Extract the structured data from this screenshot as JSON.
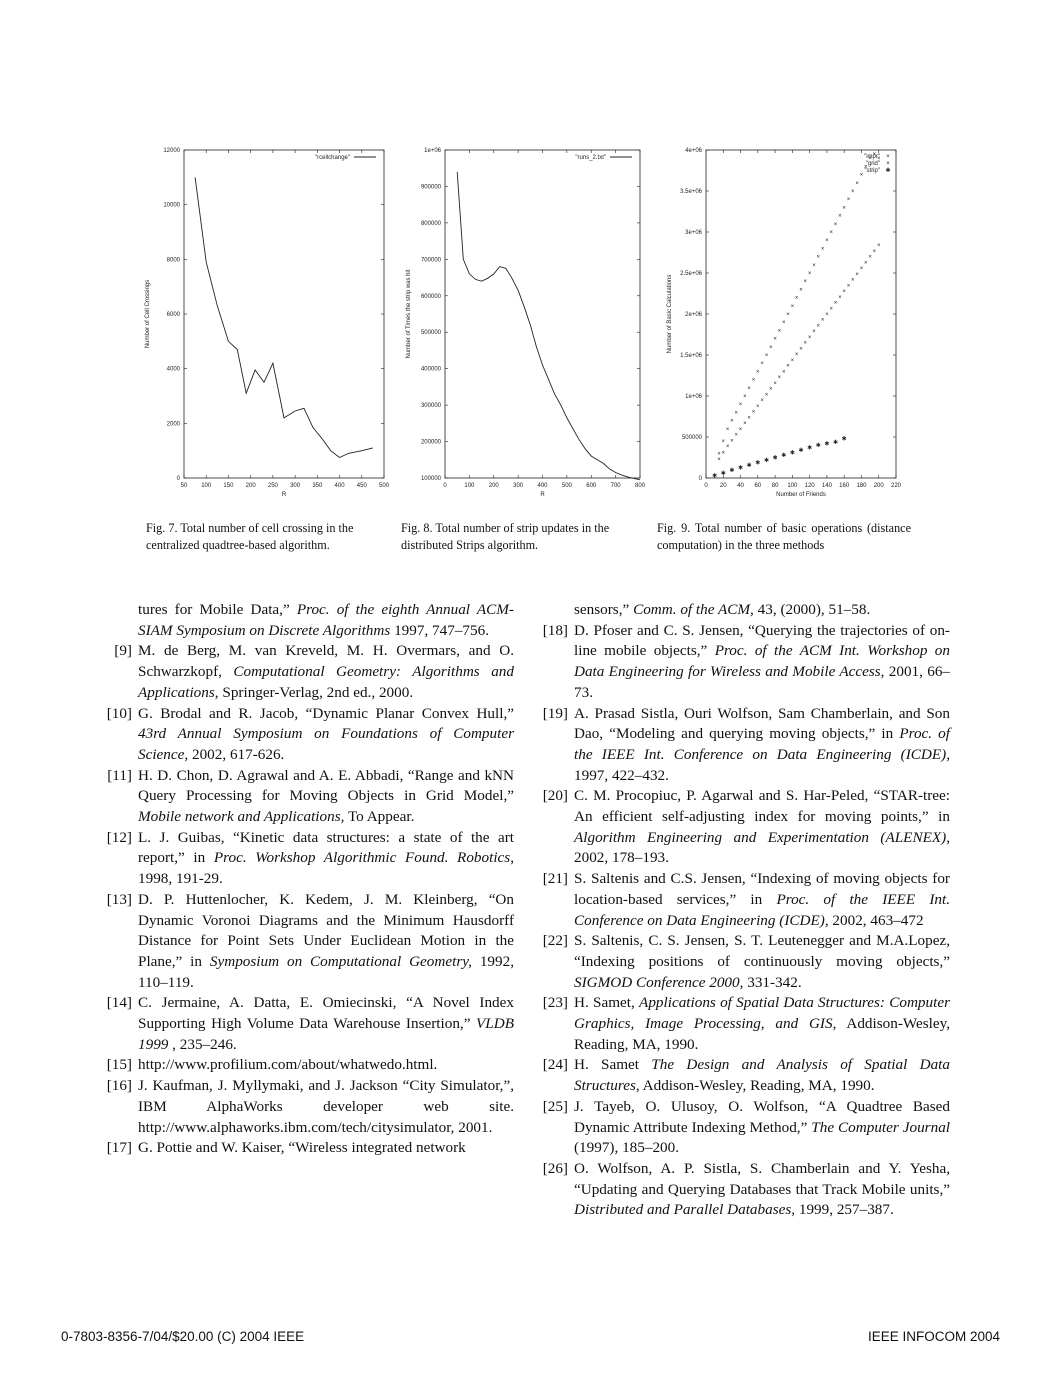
{
  "figures": [
    {
      "caption": "Fig. 7.   Total number of cell crossing in the centralized quadtree-based algorithm.",
      "chart_data": {
        "type": "line",
        "xlabel": "R",
        "ylabel": "Number of Cell Crossings",
        "xlim": [
          50,
          500
        ],
        "ylim": [
          0,
          12000
        ],
        "xticks": [
          "50",
          "100",
          "150",
          "200",
          "250",
          "300",
          "350",
          "400",
          "450",
          "500"
        ],
        "yticks": [
          "0",
          "2000",
          "4000",
          "6000",
          "8000",
          "10000",
          "12000"
        ],
        "legend_position": "top-right",
        "series": [
          {
            "name": "\"rcellchange\"",
            "x": [
              75,
              100,
              125,
              150,
              170,
              190,
              210,
              230,
              250,
              275,
              300,
              320,
              340,
              360,
              380,
              400,
              420,
              450,
              475
            ],
            "y": [
              11000,
              7900,
              6300,
              5000,
              4700,
              3100,
              3950,
              3500,
              4200,
              2200,
              2450,
              2550,
              1850,
              1450,
              1000,
              750,
              900,
              1000,
              1100
            ]
          }
        ]
      }
    },
    {
      "caption": "Fig. 8.   Total number of strip updates in the distributed Strips algorithm.",
      "chart_data": {
        "type": "line",
        "xlabel": "R",
        "ylabel": "Number of Times the strip was hit",
        "xlim": [
          0,
          800
        ],
        "ylim": [
          100000,
          1000000
        ],
        "xticks": [
          "0",
          "100",
          "200",
          "300",
          "400",
          "500",
          "600",
          "700",
          "800"
        ],
        "yticks": [
          "100000",
          "200000",
          "300000",
          "400000",
          "500000",
          "600000",
          "700000",
          "800000",
          "900000",
          "1e+06"
        ],
        "legend_position": "top-right",
        "series": [
          {
            "name": "\"runs_2.txt\"",
            "x": [
              50,
              75,
              100,
              125,
              150,
              175,
              200,
              225,
              250,
              275,
              300,
              325,
              350,
              375,
              400,
              425,
              450,
              475,
              500,
              525,
              550,
              575,
              600,
              625,
              650,
              675,
              700,
              725,
              750,
              775,
              800
            ],
            "y": [
              940000,
              700000,
              660000,
              645000,
              640000,
              648000,
              660000,
              680000,
              675000,
              648000,
              615000,
              570000,
              520000,
              460000,
              410000,
              370000,
              330000,
              300000,
              265000,
              235000,
              205000,
              180000,
              160000,
              150000,
              140000,
              125000,
              115000,
              108000,
              103000,
              99000,
              95000
            ]
          }
        ]
      }
    },
    {
      "caption": "Fig. 9.    Total number of basic operations (distance computation) in the three methods",
      "chart_data": {
        "type": "scatter",
        "xlabel": "Number of Friends",
        "ylabel": "Number of Basic Calculations",
        "xlim": [
          0,
          220
        ],
        "ylim": [
          0,
          4000000
        ],
        "xticks": [
          "0",
          "20",
          "40",
          "60",
          "80",
          "100",
          "120",
          "140",
          "160",
          "180",
          "200",
          "220"
        ],
        "yticks": [
          "0",
          "500000",
          "1e+06",
          "1.5e+06",
          "2e+06",
          "2.5e+06",
          "3e+06",
          "3.5e+06",
          "4e+06"
        ],
        "legend_position": "top-right",
        "series": [
          {
            "name": "\"impr\"",
            "marker": "+",
            "x": [
              15,
              20,
              25,
              30,
              35,
              40,
              45,
              50,
              55,
              60,
              65,
              70,
              75,
              80,
              85,
              90,
              95,
              100,
              105,
              110,
              115,
              120,
              125,
              130,
              135,
              140,
              145,
              150,
              155,
              160,
              165,
              170,
              175,
              180,
              185,
              190,
              195,
              200
            ],
            "y": [
              300000,
              450000,
              600000,
              700000,
              800000,
              900000,
              1000000,
              1100000,
              1200000,
              1300000,
              1400000,
              1500000,
              1600000,
              1700000,
              1800000,
              1900000,
              2000000,
              2100000,
              2200000,
              2300000,
              2400000,
              2500000,
              2600000,
              2700000,
              2800000,
              2900000,
              3000000,
              3100000,
              3200000,
              3300000,
              3400000,
              3500000,
              3600000,
              3700000,
              3800000,
              3900000,
              3950000,
              3900000
            ]
          },
          {
            "name": "\"grid\"",
            "marker": "x",
            "x": [
              15,
              20,
              25,
              30,
              35,
              40,
              45,
              50,
              55,
              60,
              65,
              70,
              75,
              80,
              85,
              90,
              95,
              100,
              105,
              110,
              115,
              120,
              125,
              130,
              135,
              140,
              145,
              150,
              155,
              160,
              165,
              170,
              175,
              180,
              185,
              190,
              195,
              200
            ],
            "y": [
              230000,
              310000,
              390000,
              460000,
              530000,
              600000,
              670000,
              740000,
              810000,
              880000,
              950000,
              1020000,
              1090000,
              1160000,
              1230000,
              1300000,
              1370000,
              1440000,
              1510000,
              1580000,
              1650000,
              1720000,
              1790000,
              1860000,
              1930000,
              2000000,
              2070000,
              2140000,
              2210000,
              2280000,
              2350000,
              2420000,
              2490000,
              2560000,
              2630000,
              2700000,
              2770000,
              2840000
            ]
          },
          {
            "name": "\"strip\"",
            "marker": "*",
            "x": [
              10,
              20,
              30,
              40,
              50,
              60,
              70,
              80,
              90,
              100,
              110,
              120,
              130,
              140,
              150,
              160
            ],
            "y": [
              30000,
              60000,
              100000,
              130000,
              160000,
              190000,
              220000,
              250000,
              280000,
              310000,
              340000,
              370000,
              400000,
              420000,
              440000,
              480000
            ]
          }
        ]
      }
    }
  ],
  "references_left": [
    {
      "num": "",
      "html": "tures for Mobile Data,” <i>Proc. of the eighth Annual ACM-SIAM Symposium on Discrete Algorithms</i> 1997, 747–756."
    },
    {
      "num": "[9]",
      "html": "M. de Berg, M. van Kreveld, M. H. Overmars, and O. Schwarzkopf, <i>Computational Geometry: Algorithms and Applications</i>, Springer-Verlag, 2nd ed., 2000."
    },
    {
      "num": "[10]",
      "html": "G. Brodal and R. Jacob, “Dynamic Planar Convex Hull,” <i>43rd Annual Symposium on Foundations of Computer Science,</i> 2002, 617-626."
    },
    {
      "num": "[11]",
      "html": "H. D. Chon, D. Agrawal and A. E. Abbadi, “Range and kNN Query Processing for Moving Objects in Grid Model,” <i>Mobile network and Applications,</i> To Appear."
    },
    {
      "num": "[12]",
      "html": "L. J. Guibas, “Kinetic data structures: a state of the art report,” in <i>Proc. Workshop Algorithmic Found. Robotics</i>, 1998, 191-29."
    },
    {
      "num": "[13]",
      "html": "D. P. Huttenlocher, K. Kedem, J. M. Kleinberg, “On Dynamic Voronoi Diagrams and the Minimum Hausdorff Distance for Point Sets Under Euclidean Motion in the Plane,” in <i>Symposium on Computational Geometry,</i> 1992, 110–119."
    },
    {
      "num": "[14]",
      "html": "C. Jermaine, A. Datta, E. Omiecinski, “A Novel Index Supporting High Volume Data Warehouse Insertion,” <i>VLDB 1999</i> , 235–246."
    },
    {
      "num": "[15]",
      "html": "http://www.profilium.com/about/whatwedo.html."
    },
    {
      "num": "[16]",
      "html": "J. Kaufman, J. Myllymaki, and J. Jackson “City Simulator,”, IBM AlphaWorks developer web site. http://www.alphaworks.ibm.com/tech/citysimulator, 2001."
    },
    {
      "num": "[17]",
      "html": "G. Pottie and W. Kaiser, “Wireless integrated network"
    }
  ],
  "references_right": [
    {
      "num": "",
      "html": "sensors,” <i>Comm. of the ACM,</i> 43, (2000), 51–58."
    },
    {
      "num": "[18]",
      "html": "D. Pfoser and C. S. Jensen, “Querying the trajectories of on-line mobile objects,” <i>Proc. of the ACM Int. Workshop on Data Engineering for Wireless and Mobile Access</i>, 2001, 66–73."
    },
    {
      "num": "[19]",
      "html": "A. Prasad Sistla, Ouri Wolfson, Sam Chamberlain, and Son Dao, “Modeling and querying moving objects,” in <i>Proc. of the IEEE Int. Conference on Data Engineering (ICDE)</i>, 1997, 422–432."
    },
    {
      "num": "[20]",
      "html": "C. M. Procopiuc, P. Agarwal and S. Har-Peled, “STAR-tree: An efficient self-adjusting index for moving points,” in <i>Algorithm Engineering and Experimentation (ALENEX)</i>, 2002, 178–193."
    },
    {
      "num": "[21]",
      "html": "S. Saltenis and C.S. Jensen, “Indexing of moving objects for location-based services,” in <i>Proc. of the IEEE Int. Conference on Data Engineering (ICDE)</i>, 2002, 463–472"
    },
    {
      "num": "[22]",
      "html": "S. Saltenis, C. S. Jensen, S. T. Leutenegger and M.A.Lopez, “Indexing positions of continuously moving objects,” <i>SIGMOD Conference 2000</i>, 331-342."
    },
    {
      "num": "[23]",
      "html": "H. Samet, <i>Applications of Spatial Data Structures: Computer Graphics, Image Processing, and GIS</i>, Addison-Wesley, Reading, MA, 1990."
    },
    {
      "num": "[24]",
      "html": "H. Samet <i>The Design and Analysis of Spatial Data Structures</i>, Addison-Wesley, Reading, MA, 1990."
    },
    {
      "num": "[25]",
      "html": "J. Tayeb, O. Ulusoy, O. Wolfson, “A Quadtree Based Dynamic Attribute Indexing Method,” <i>The Computer Journal</i> (1997), 185–200."
    },
    {
      "num": "[26]",
      "html": "O. Wolfson, A. P. Sistla, S. Chamberlain and Y. Yesha, “Updating and Querying Databases that Track Mobile units,” <i>Distributed and Parallel Databases,</i> 1999, 257–387."
    }
  ],
  "footer": {
    "left": "0-7803-8356-7/04/$20.00 (C) 2004 IEEE",
    "right": "IEEE INFOCOM 2004"
  }
}
